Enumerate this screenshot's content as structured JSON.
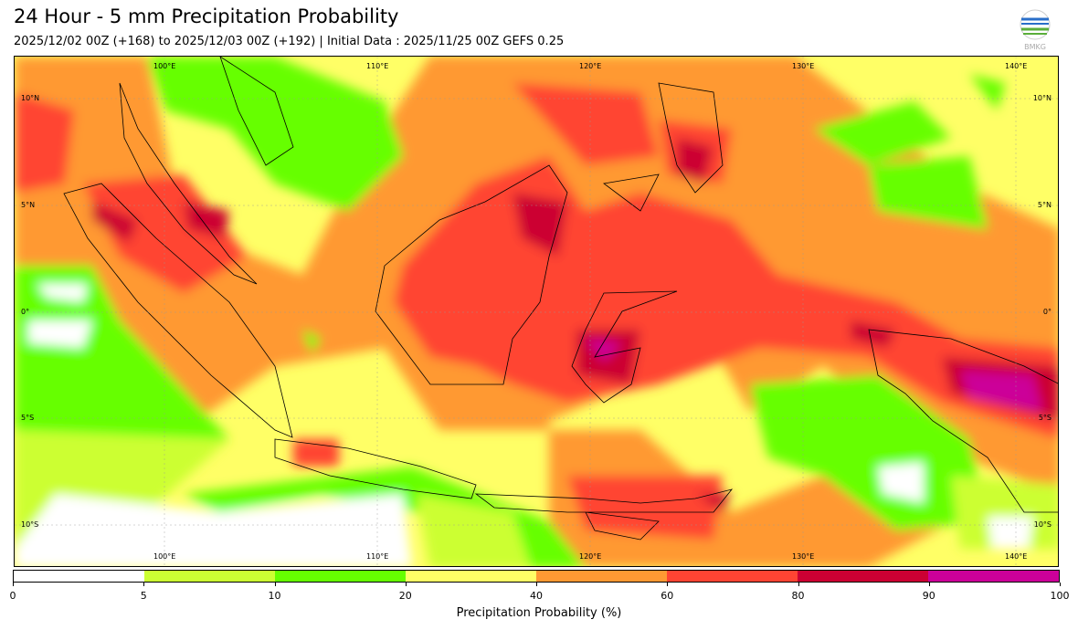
{
  "title": "24 Hour - 5 mm Precipitation Probability",
  "subtitle": "2025/12/02 00Z (+168) to 2025/12/03 00Z (+192) | Initial Data : 2025/11/25 00Z GEFS 0.25",
  "logo_text": "BMKG",
  "map": {
    "lon_labels": [
      "100°E",
      "110°E",
      "120°E",
      "130°E",
      "140°E"
    ],
    "lat_labels": [
      "10°N",
      "5°N",
      "0°",
      "5°S",
      "10°S"
    ]
  },
  "colorbar": {
    "label": "Precipitation Probability (%)",
    "ticks": [
      "0",
      "5",
      "10",
      "20",
      "40",
      "60",
      "80",
      "90",
      "100"
    ],
    "colors": [
      "#ffffff",
      "#ccff33",
      "#66ff00",
      "#ffff66",
      "#ff9933",
      "#ff4433",
      "#cc0033",
      "#cc0099"
    ]
  }
}
